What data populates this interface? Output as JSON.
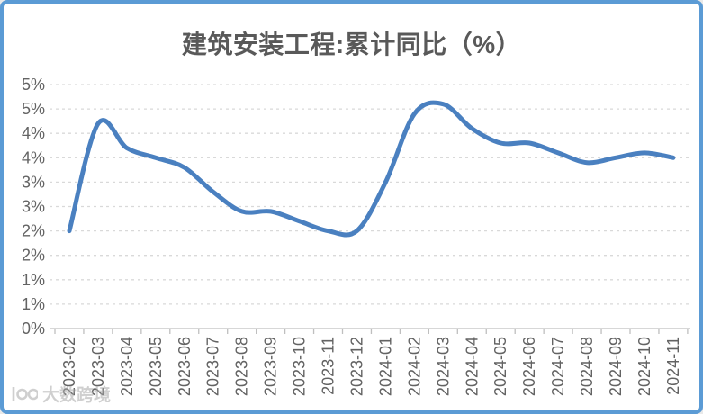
{
  "window": {
    "border_color": "#5b9bd5",
    "background": "#ffffff"
  },
  "chart_data": {
    "type": "line",
    "title": "建筑安装工程:累计同比（%）",
    "categories": [
      "2023-02",
      "2023-03",
      "2023-04",
      "2023-05",
      "2023-06",
      "2023-07",
      "2023-08",
      "2023-09",
      "2023-10",
      "2023-11",
      "2023-12",
      "2024-01",
      "2024-02",
      "2024-03",
      "2024-04",
      "2024-05",
      "2024-06",
      "2024-07",
      "2024-08",
      "2024-09",
      "2024-10",
      "2024-11"
    ],
    "series": [
      {
        "name": "建筑安装工程:累计同比(%)",
        "values": [
          2.0,
          4.2,
          3.7,
          3.5,
          3.3,
          2.8,
          2.4,
          2.4,
          2.2,
          2.0,
          2.0,
          3.0,
          4.4,
          4.6,
          4.1,
          3.8,
          3.8,
          3.6,
          3.4,
          3.5,
          3.6,
          3.5
        ]
      }
    ],
    "xlabel": "",
    "ylabel": "",
    "ylim": [
      0,
      5
    ],
    "ytick_step": 0.5,
    "ytick_labels": [
      "0%",
      "1%",
      "1%",
      "2%",
      "2%",
      "3%",
      "3%",
      "4%",
      "4%",
      "5%",
      "5%"
    ],
    "x_tick_label_rotation": -90,
    "grid": "horizontal-dashed",
    "legend": "none",
    "smooth_line": true,
    "line_color": "#4a80c0",
    "gridline_color": "#d9d9d9",
    "axis_color": "#bfbfbf",
    "tick_label_color": "#636363",
    "title_color": "#595959"
  },
  "watermark": {
    "text": "大数跨境"
  }
}
